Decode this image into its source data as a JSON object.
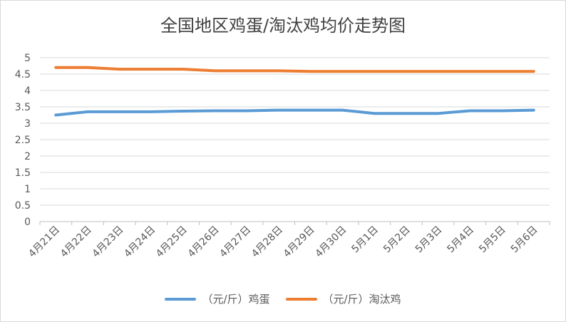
{
  "chart_data": {
    "type": "line",
    "title": "全国地区鸡蛋/淘汰鸡均价走势图",
    "xlabel": "",
    "ylabel": "",
    "ylim": [
      0,
      5
    ],
    "yticks": [
      "0",
      "0.5",
      "1",
      "1.5",
      "2",
      "2.5",
      "3",
      "3.5",
      "4",
      "4.5",
      "5"
    ],
    "grid": true,
    "legend_position": "bottom",
    "categories": [
      "4月21日",
      "4月22日",
      "4月23日",
      "4月24日",
      "4月25日",
      "4月26日",
      "4月27日",
      "4月28日",
      "4月29日",
      "4月30日",
      "5月1日",
      "5月2日",
      "5月3日",
      "5月4日",
      "5月5日",
      "5月6日"
    ],
    "series": [
      {
        "name": "（元/斤）鸡蛋",
        "color": "#5b9bd5",
        "values": [
          3.25,
          3.35,
          3.35,
          3.35,
          3.37,
          3.38,
          3.38,
          3.4,
          3.4,
          3.4,
          3.3,
          3.3,
          3.3,
          3.38,
          3.38,
          3.4
        ]
      },
      {
        "name": "（元/斤）淘汰鸡",
        "color": "#ed7d31",
        "values": [
          4.7,
          4.7,
          4.65,
          4.65,
          4.65,
          4.6,
          4.6,
          4.6,
          4.58,
          4.58,
          4.58,
          4.58,
          4.58,
          4.58,
          4.58,
          4.58
        ]
      }
    ]
  }
}
